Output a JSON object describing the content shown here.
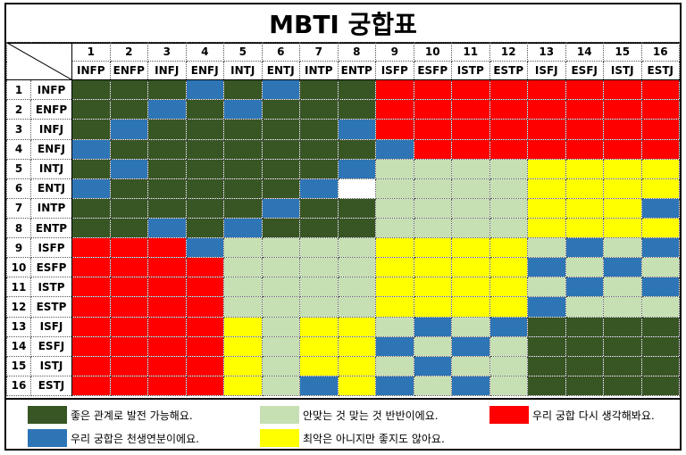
{
  "title": "MBTI 궁합표",
  "numbers": [
    "1",
    "2",
    "3",
    "4",
    "5",
    "6",
    "7",
    "8",
    "9",
    "10",
    "11",
    "12",
    "13",
    "14",
    "15",
    "16"
  ],
  "types": [
    "INFP",
    "ENFP",
    "INFJ",
    "ENFJ",
    "INTJ",
    "ENTJ",
    "INTP",
    "ENTP",
    "ISFP",
    "ESFP",
    "ISTP",
    "ESTP",
    "ISFJ",
    "ESFJ",
    "ISTJ",
    "ESTJ"
  ],
  "colors": {
    "G": "#375623",
    "B": "#2e75b6",
    "L": "#c6e0b4",
    "Y": "#ffff00",
    "R": "#ff0000",
    "W": "#ffffff"
  },
  "matrix": [
    "GGGBGBGGRRRRRRRR",
    "GGBGBGGGRRRRRRRR",
    "GBGGGGGBRRRRRRRR",
    "BGGGGGGGBRRRRRRR",
    "GBGGGGGBLLLLYYYY",
    "BGGGGGBWLLLLYYYY",
    "GGGGGBGGLLLLYYYB",
    "GGBGBGGGLLLLYYYY",
    "RRRBLLLLYYYYLBLB",
    "RRRRLLLLYYYYBLBL",
    "RRRRLLLLYYYYLBLB",
    "RRRRLLLLYYYYBLLL",
    "RRRRYLYYLBLBGGGG",
    "RRRRYLYYBLBLGGGG",
    "RRRRYLYYLBLLGGGG",
    "RRRRYLBYBLBLGGGG"
  ],
  "legend": [
    {
      "key": "G",
      "text": "좋은 관계로 발전 가능해요."
    },
    {
      "key": "L",
      "text": "안맞는 것 맞는 것 반반이에요."
    },
    {
      "key": "R",
      "text": "우리 궁합 다시 생각해봐요."
    },
    {
      "key": "B",
      "text": "우리 궁합은 천생연분이에요."
    },
    {
      "key": "Y",
      "text": "최악은 아니지만 좋지도 않아요."
    }
  ]
}
